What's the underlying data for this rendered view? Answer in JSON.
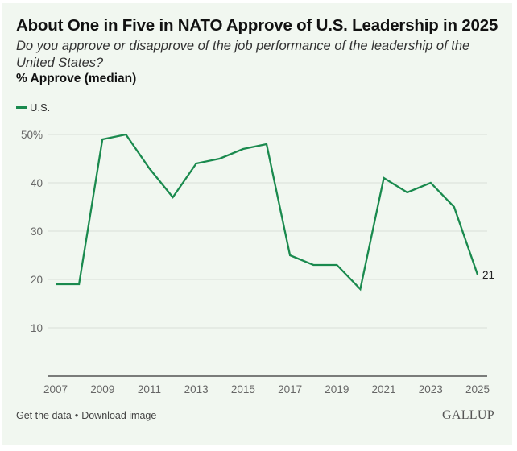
{
  "title": "About One in Five in NATO Approve of U.S. Leadership in 2025",
  "subtitle": "Do you approve or disapprove of the job performance of the leadership of the United States?",
  "measure_label": "% Approve (median)",
  "footer": {
    "get_data": "Get the data",
    "separator": "•",
    "download_image": "Download image",
    "brand": "GALLUP"
  },
  "colors": {
    "series": "#1a8a4e",
    "background": "#f1f7f0",
    "gridline": "#d9dfd8",
    "axis": "#333333",
    "tick_text": "#666666"
  },
  "chart_data": {
    "type": "line",
    "title": "About One in Five in NATO Approve of U.S. Leadership in 2025",
    "subtitle": "Do you approve or disapprove of the job performance of the leadership of the United States?",
    "ylabel": "% Approve (median)",
    "xlabel": "",
    "x": [
      2007,
      2008,
      2009,
      2010,
      2011,
      2012,
      2013,
      2014,
      2015,
      2016,
      2017,
      2018,
      2019,
      2020,
      2021,
      2022,
      2023,
      2024,
      2025
    ],
    "series": [
      {
        "name": "U.S.",
        "values": [
          19,
          19,
          49,
          50,
          43,
          37,
          44,
          45,
          47,
          48,
          25,
          23,
          23,
          18,
          41,
          38,
          40,
          35,
          21
        ]
      }
    ],
    "xlim": [
      2007,
      2025
    ],
    "ylim": [
      0,
      50
    ],
    "x_ticks": [
      "2007",
      "2009",
      "2011",
      "2013",
      "2015",
      "2017",
      "2019",
      "2021",
      "2023",
      "2025"
    ],
    "y_ticks": [
      {
        "value": 50,
        "label": "50%"
      },
      {
        "value": 40,
        "label": "40"
      },
      {
        "value": 30,
        "label": "30"
      },
      {
        "value": 20,
        "label": "20"
      },
      {
        "value": 10,
        "label": "10"
      }
    ],
    "end_label": {
      "year": 2025,
      "text": "21"
    },
    "grid": true,
    "legend": "top-left"
  }
}
